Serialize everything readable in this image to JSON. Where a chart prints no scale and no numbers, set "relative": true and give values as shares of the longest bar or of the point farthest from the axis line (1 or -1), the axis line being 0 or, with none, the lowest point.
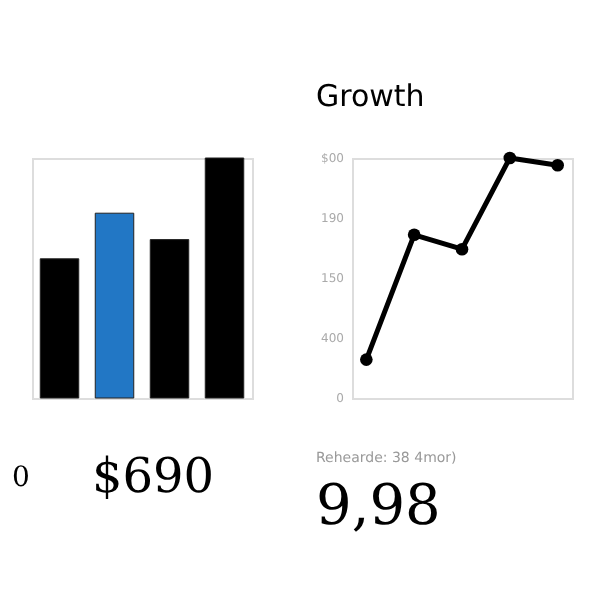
{
  "chart_data": [
    {
      "type": "bar",
      "relative": true,
      "categories": [
        null,
        null,
        null,
        null
      ],
      "values": [
        0.58,
        0.77,
        0.66,
        1
      ],
      "colors": [
        "#000000",
        "#2277c5",
        "#000000",
        "#000000"
      ],
      "annotations": [
        "0",
        "$690"
      ]
    },
    {
      "type": "line",
      "title": "Growth",
      "relative": true,
      "categories": [
        null,
        null,
        null,
        null,
        null
      ],
      "values": [
        0.16,
        0.68,
        0.62,
        1,
        0.97
      ],
      "color": "#000000",
      "marker": "circle",
      "annotations": [
        "$00",
        "190",
        "150",
        "400",
        "0",
        "Rehearde: 38 4mor)",
        "9,98"
      ]
    }
  ]
}
